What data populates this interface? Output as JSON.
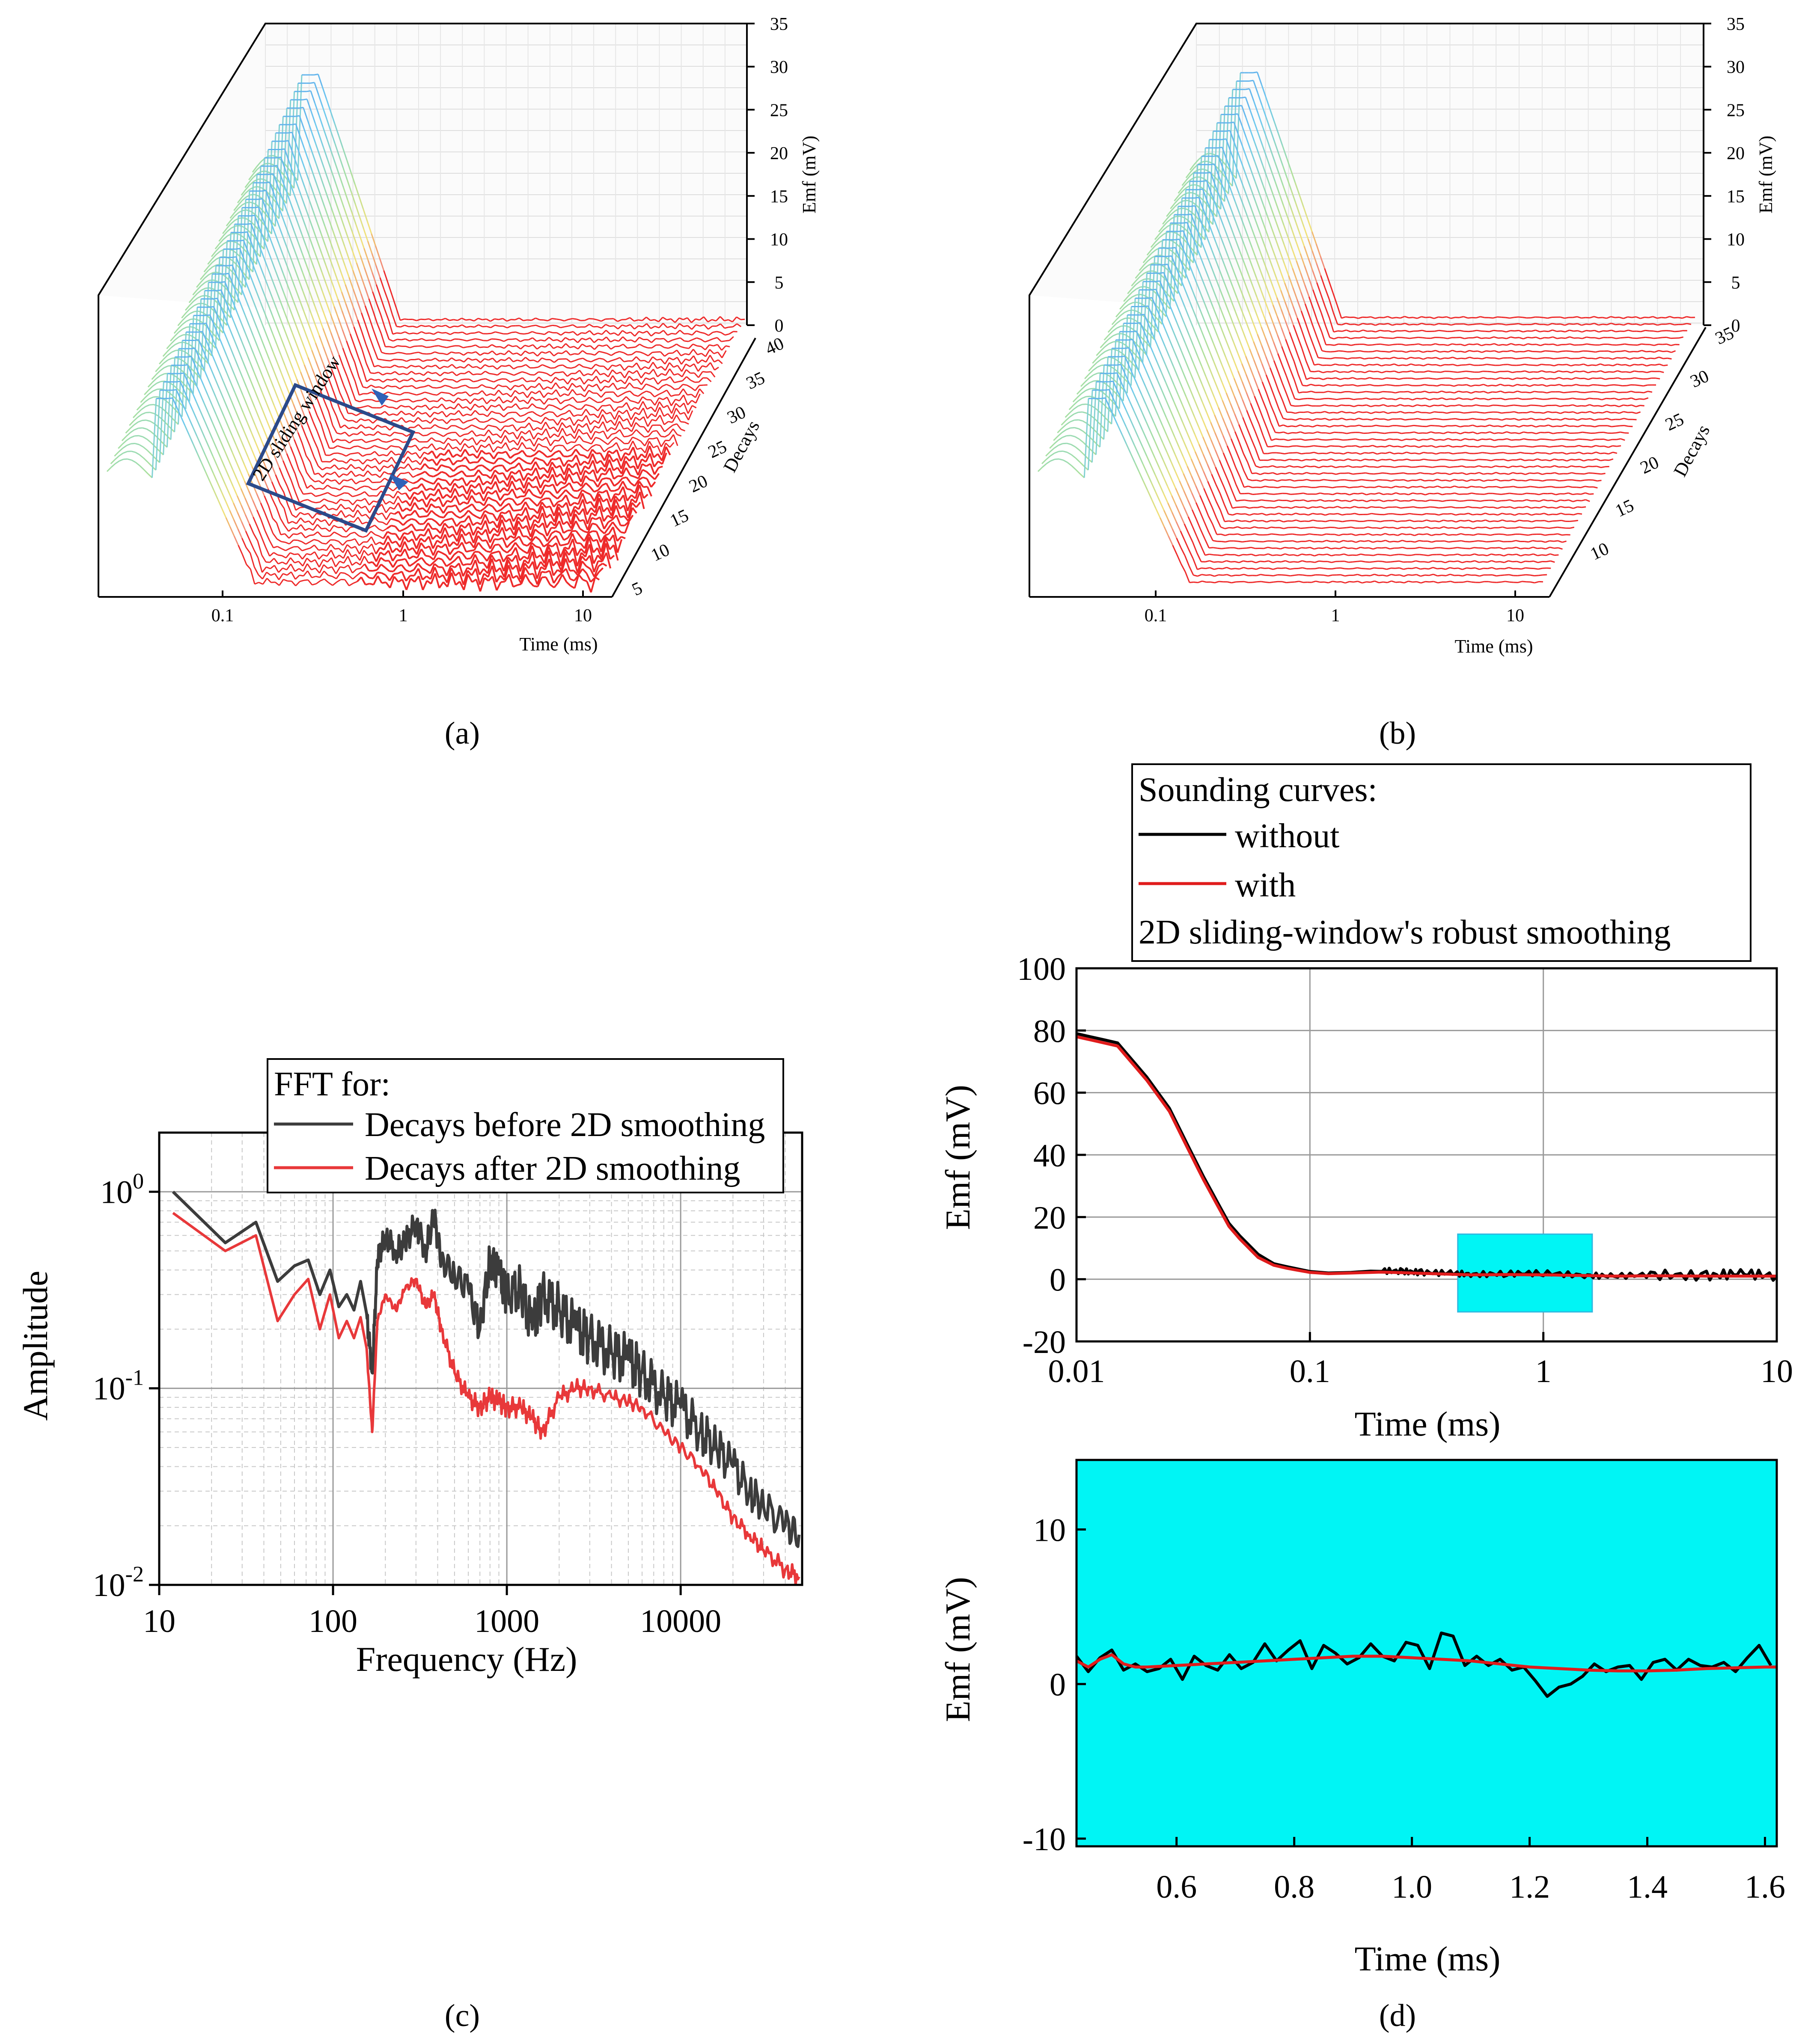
{
  "panel_labels": {
    "a": "(a)",
    "b": "(b)",
    "c": "(c)",
    "d": "(d)"
  },
  "panel_a": {
    "z_axis_label": "Emf (mV)",
    "z_ticks": [
      "0",
      "5",
      "10",
      "15",
      "20",
      "25",
      "30",
      "35"
    ],
    "decay_axis_label": "Decays",
    "decay_ticks": [
      "5",
      "10",
      "15",
      "20",
      "25",
      "30",
      "35",
      "40"
    ],
    "time_axis_label": "Time (ms)",
    "time_ticks": [
      "0.1",
      "1",
      "10"
    ],
    "annotation": "2D sliding window"
  },
  "panel_b": {
    "z_axis_label": "Emf (mV)",
    "z_ticks": [
      "0",
      "5",
      "10",
      "15",
      "20",
      "25",
      "30",
      "35"
    ],
    "decay_axis_label": "Decays",
    "decay_ticks": [
      "10",
      "15",
      "20",
      "25",
      "30",
      "35"
    ],
    "time_axis_label": "Time (ms)",
    "time_ticks": [
      "0.1",
      "1",
      "10"
    ]
  },
  "colors": {
    "before": "#3c3c3c",
    "after": "#e8383a",
    "black_curve": "#000000",
    "red_curve": "#e01c1c",
    "highlight": "#00f5f5",
    "window_box": "#2b4a8a"
  },
  "chart_data": [
    {
      "id": "c",
      "type": "line",
      "title": "FFT for:",
      "xlabel": "Frequency (Hz)",
      "ylabel": "Amplitude",
      "xscale": "log",
      "yscale": "log",
      "xlim": [
        10,
        50000
      ],
      "ylim": [
        0.01,
        2
      ],
      "x_ticks": [
        "10",
        "100",
        "1000",
        "10000"
      ],
      "y_tick_base": "10",
      "y_tick_exps": [
        "0",
        "-1",
        "-2"
      ],
      "legend": [
        "Decays before 2D smoothing",
        "Decays after 2D smoothing"
      ],
      "series": [
        {
          "name": "Decays before 2D smoothing",
          "x": [
            12,
            24,
            36,
            48,
            60,
            72,
            84,
            96,
            108,
            120,
            132,
            144,
            156,
            168,
            180,
            200,
            230,
            260,
            300,
            340,
            380,
            420,
            500,
            600,
            700,
            800,
            900,
            1000,
            1200,
            1400,
            1600,
            2000,
            2500,
            3000,
            4000,
            5000,
            6000,
            8000,
            10000,
            13000,
            16000,
            20000,
            25000,
            30000,
            40000,
            48000
          ],
          "y": [
            1.0,
            0.55,
            0.7,
            0.35,
            0.42,
            0.45,
            0.3,
            0.4,
            0.26,
            0.3,
            0.25,
            0.35,
            0.24,
            0.12,
            0.45,
            0.6,
            0.5,
            0.55,
            0.7,
            0.5,
            0.75,
            0.45,
            0.38,
            0.32,
            0.2,
            0.45,
            0.38,
            0.3,
            0.32,
            0.2,
            0.3,
            0.25,
            0.2,
            0.18,
            0.15,
            0.14,
            0.12,
            0.09,
            0.08,
            0.06,
            0.05,
            0.04,
            0.03,
            0.025,
            0.02,
            0.018
          ]
        },
        {
          "name": "Decays after 2D smoothing",
          "x": [
            12,
            24,
            36,
            48,
            60,
            72,
            84,
            96,
            108,
            120,
            132,
            144,
            156,
            168,
            180,
            200,
            230,
            260,
            300,
            340,
            380,
            420,
            500,
            600,
            700,
            800,
            900,
            1000,
            1200,
            1400,
            1600,
            2000,
            2500,
            3000,
            4000,
            5000,
            6000,
            8000,
            10000,
            13000,
            16000,
            20000,
            25000,
            30000,
            40000,
            48000
          ],
          "y": [
            0.78,
            0.5,
            0.6,
            0.22,
            0.3,
            0.36,
            0.2,
            0.3,
            0.18,
            0.22,
            0.18,
            0.23,
            0.16,
            0.06,
            0.22,
            0.3,
            0.25,
            0.32,
            0.36,
            0.26,
            0.3,
            0.2,
            0.12,
            0.09,
            0.08,
            0.09,
            0.085,
            0.08,
            0.08,
            0.07,
            0.06,
            0.09,
            0.1,
            0.1,
            0.09,
            0.085,
            0.08,
            0.06,
            0.05,
            0.04,
            0.03,
            0.022,
            0.018,
            0.015,
            0.012,
            0.011
          ]
        }
      ]
    },
    {
      "id": "d-top",
      "type": "line",
      "xlabel": "Time (ms)",
      "ylabel": "Emf (mV)",
      "xscale": "log",
      "xlim": [
        0.01,
        10
      ],
      "ylim": [
        -20,
        100
      ],
      "x_ticks": [
        "0.01",
        "0.1",
        "1",
        "10"
      ],
      "y_ticks": [
        "-20",
        "0",
        "20",
        "40",
        "60",
        "80",
        "100"
      ],
      "legend_title": "Sounding curves:",
      "legend": [
        "without",
        "with",
        "2D sliding-window's robust smoothing"
      ],
      "highlight_region": {
        "x": [
          0.43,
          1.62
        ],
        "y": [
          -10.5,
          14.5
        ]
      },
      "series": [
        {
          "name": "without",
          "x": [
            0.01,
            0.015,
            0.02,
            0.025,
            0.03,
            0.035,
            0.04,
            0.045,
            0.05,
            0.06,
            0.07,
            0.08,
            0.1,
            0.12,
            0.15,
            0.2,
            0.25,
            0.3,
            0.4,
            0.5,
            0.7,
            1.0,
            1.5,
            2.0,
            3.0,
            5.0,
            7.0,
            10.0
          ],
          "y": [
            79,
            76,
            65,
            55,
            43,
            33,
            25,
            18,
            14,
            8,
            5,
            4,
            2.5,
            2,
            2.2,
            2.8,
            2.5,
            2.2,
            2.0,
            1.5,
            1.8,
            2.0,
            1.2,
            1.0,
            1.5,
            1.0,
            2.0,
            1.0
          ]
        },
        {
          "name": "with",
          "x": [
            0.01,
            0.015,
            0.02,
            0.025,
            0.03,
            0.035,
            0.04,
            0.045,
            0.05,
            0.06,
            0.07,
            0.08,
            0.1,
            0.12,
            0.15,
            0.2,
            0.25,
            0.3,
            0.4,
            0.5,
            0.7,
            1.0,
            1.5,
            2.0,
            3.0,
            5.0,
            7.0,
            10.0
          ],
          "y": [
            78,
            75,
            64,
            54,
            42,
            32,
            24,
            17,
            13,
            7,
            4.5,
            3.5,
            2.2,
            1.8,
            2.0,
            2.3,
            2.1,
            1.9,
            1.6,
            1.4,
            1.5,
            1.4,
            1.2,
            1.0,
            1.1,
            1.0,
            1.0,
            1.0
          ]
        }
      ]
    },
    {
      "id": "d-bottom",
      "type": "line",
      "xlabel": "Time (ms)",
      "ylabel": "Emf (mV)",
      "xlim": [
        0.43,
        1.62
      ],
      "ylim": [
        -10.5,
        14.5
      ],
      "x_ticks": [
        "0.6",
        "0.8",
        "1.0",
        "1.2",
        "1.4",
        "1.6"
      ],
      "y_ticks": [
        "-10",
        "0",
        "10"
      ],
      "background": "#00f5f5",
      "series": [
        {
          "name": "without",
          "x": [
            0.43,
            0.45,
            0.47,
            0.49,
            0.51,
            0.53,
            0.55,
            0.57,
            0.59,
            0.61,
            0.63,
            0.65,
            0.67,
            0.69,
            0.71,
            0.73,
            0.75,
            0.77,
            0.79,
            0.81,
            0.83,
            0.85,
            0.87,
            0.89,
            0.91,
            0.93,
            0.95,
            0.97,
            0.99,
            1.01,
            1.03,
            1.05,
            1.07,
            1.09,
            1.11,
            1.13,
            1.15,
            1.17,
            1.19,
            1.21,
            1.23,
            1.25,
            1.27,
            1.29,
            1.31,
            1.33,
            1.35,
            1.37,
            1.39,
            1.41,
            1.43,
            1.45,
            1.47,
            1.49,
            1.51,
            1.53,
            1.55,
            1.57,
            1.59,
            1.61
          ],
          "y": [
            1.8,
            0.8,
            1.7,
            2.2,
            0.9,
            1.3,
            0.8,
            1.0,
            1.6,
            0.3,
            1.8,
            1.2,
            0.9,
            1.9,
            1.0,
            1.4,
            2.6,
            1.5,
            2.2,
            2.8,
            1.0,
            2.5,
            2.0,
            1.3,
            1.7,
            2.6,
            1.8,
            1.5,
            2.7,
            2.5,
            1.0,
            3.3,
            3.1,
            1.2,
            1.8,
            1.2,
            1.6,
            0.9,
            1.1,
            0.2,
            -0.8,
            -0.2,
            0.0,
            0.5,
            1.3,
            0.8,
            1.1,
            1.2,
            0.3,
            1.4,
            1.6,
            0.9,
            1.6,
            1.2,
            1.1,
            1.4,
            0.8,
            1.7,
            2.5,
            1.2
          ]
        },
        {
          "name": "with",
          "x": [
            0.43,
            0.45,
            0.47,
            0.49,
            0.51,
            0.53,
            0.55,
            0.6,
            0.65,
            0.7,
            0.75,
            0.8,
            0.85,
            0.9,
            0.95,
            1.0,
            1.05,
            1.1,
            1.15,
            1.2,
            1.25,
            1.3,
            1.35,
            1.4,
            1.45,
            1.5,
            1.55,
            1.6,
            1.62
          ],
          "y": [
            1.5,
            1.1,
            1.6,
            1.9,
            1.3,
            1.1,
            1.1,
            1.2,
            1.3,
            1.4,
            1.5,
            1.6,
            1.7,
            1.8,
            1.8,
            1.7,
            1.6,
            1.5,
            1.3,
            1.1,
            1.0,
            0.9,
            0.85,
            0.85,
            0.9,
            1.0,
            1.05,
            1.1,
            1.1
          ]
        }
      ]
    }
  ]
}
